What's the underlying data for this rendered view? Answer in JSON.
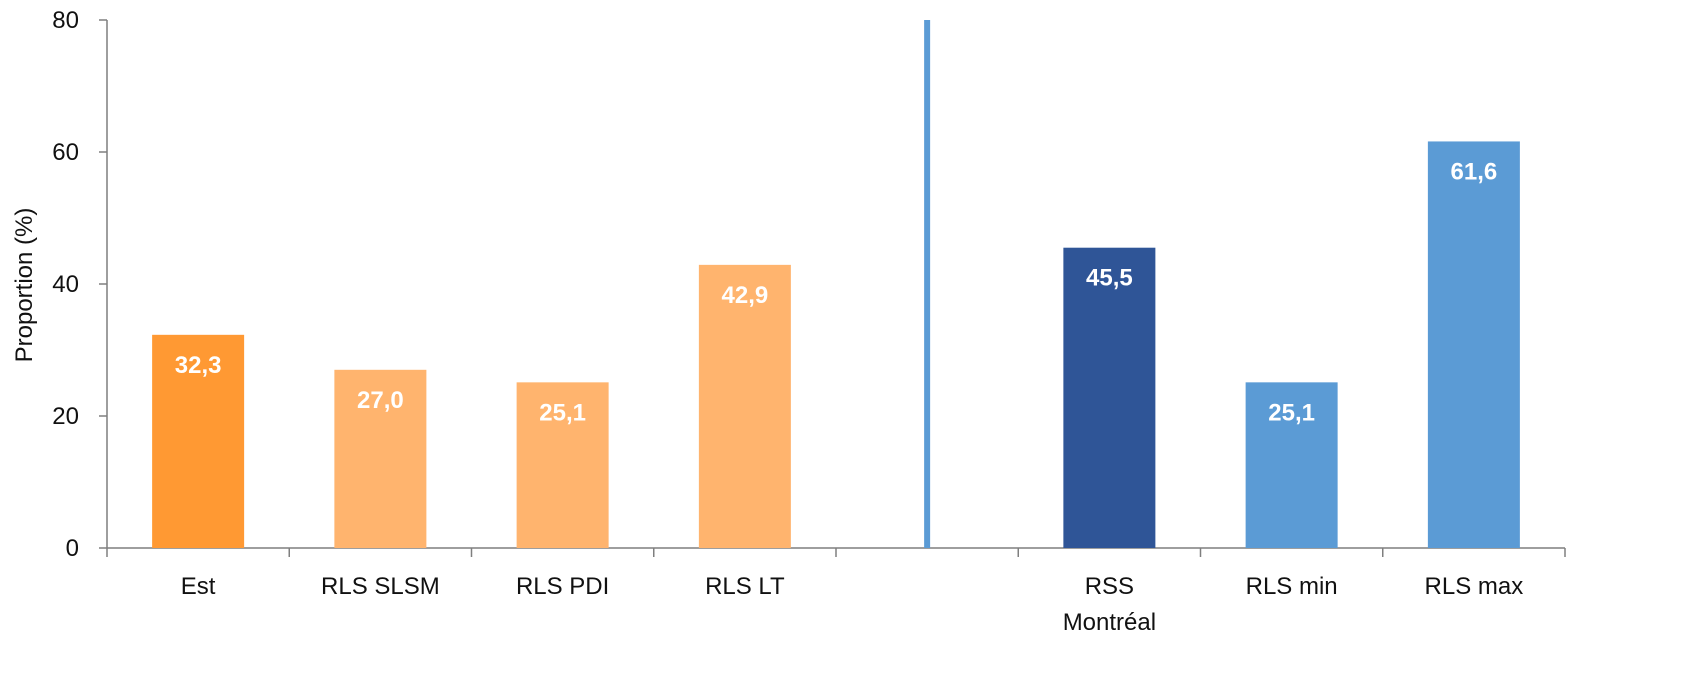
{
  "chart_data": {
    "type": "bar",
    "title": "",
    "xlabel": "",
    "ylabel": "Proportion (%)",
    "ylim": [
      0,
      80
    ],
    "yticks": [
      0,
      20,
      40,
      60,
      80
    ],
    "grid": false,
    "legend": "none",
    "categories": [
      "Est",
      "RLS SLSM",
      "RLS PDI",
      "RLS LT",
      "",
      "RSS\nMontréal",
      "RLS min",
      "RLS max"
    ],
    "values": [
      32.3,
      27.0,
      25.1,
      42.9,
      null,
      45.5,
      25.1,
      61.6
    ],
    "data_labels": [
      "32,3",
      "27,0",
      "25,1",
      "42,9",
      "",
      "45,5",
      "25,1",
      "61,6"
    ],
    "bar_colors": [
      "#ff9933",
      "#ffb46e",
      "#ffb46e",
      "#ffb46e",
      "",
      "#2f5597",
      "#5b9bd5",
      "#5b9bd5"
    ],
    "divider_after_category": 4,
    "divider_color": "#5b9bd5",
    "axis_color": "#7f7f7f"
  }
}
